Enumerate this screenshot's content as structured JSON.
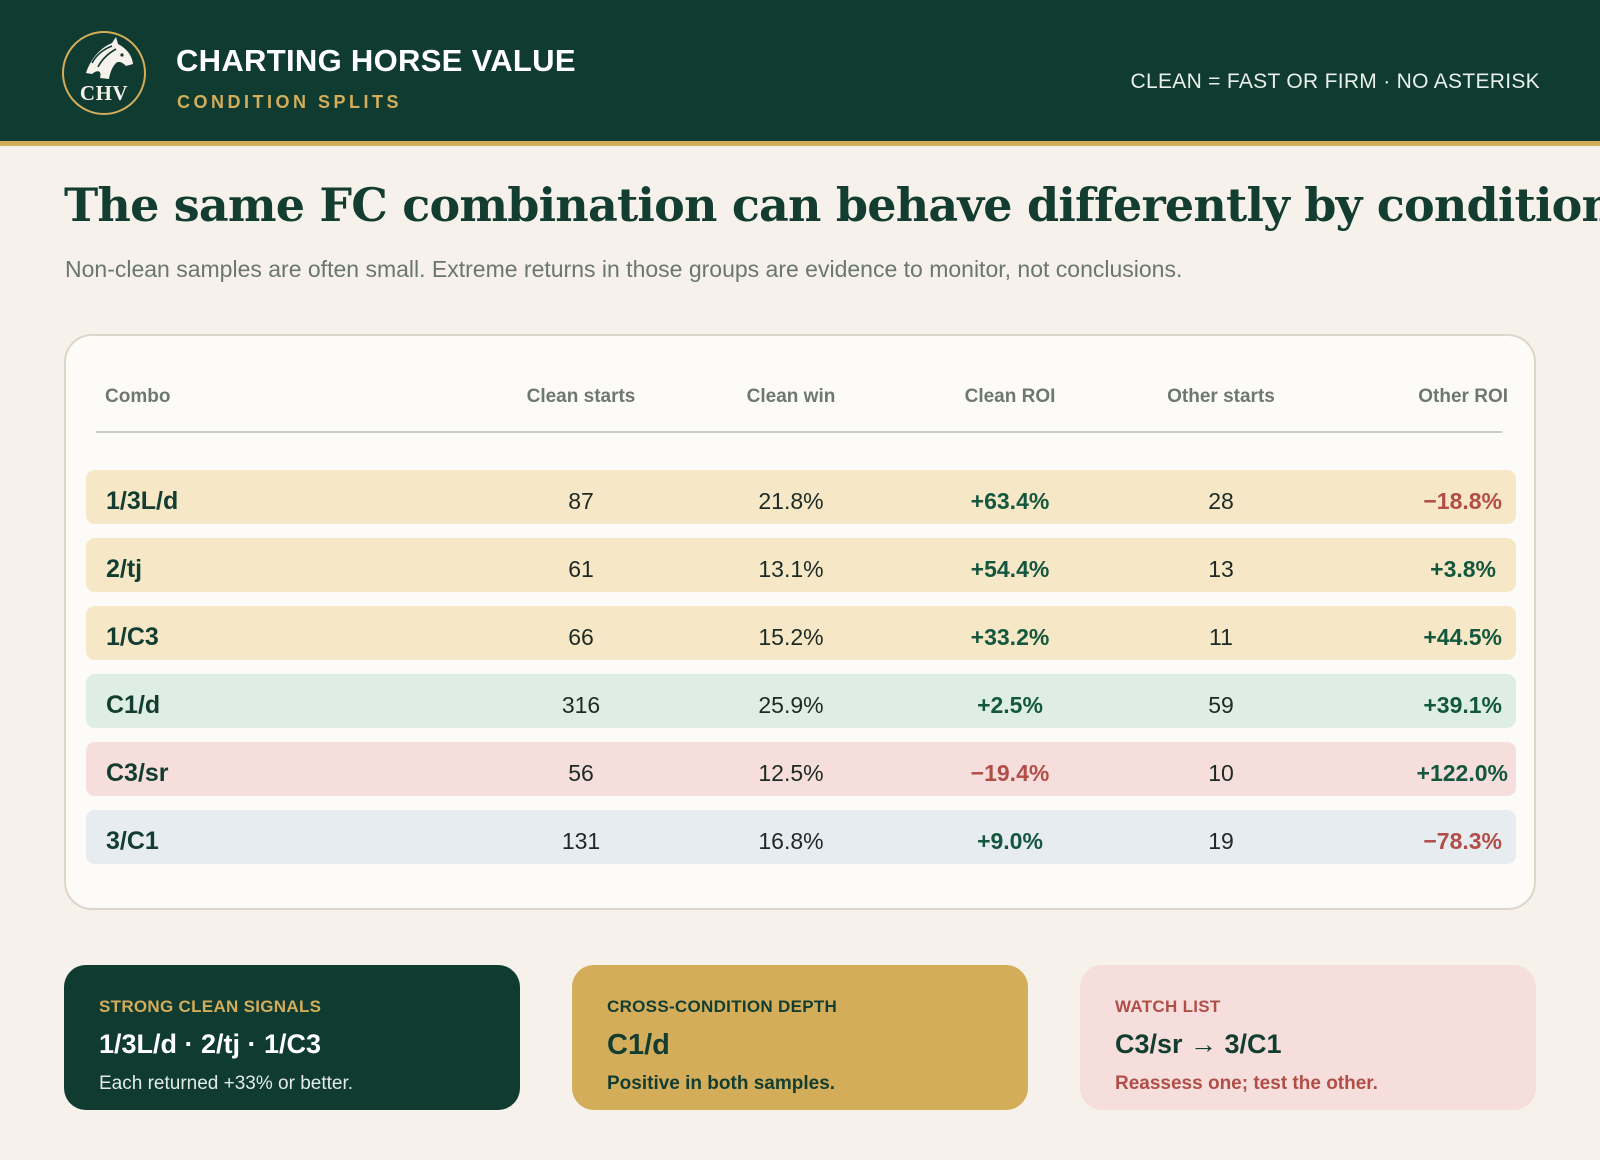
{
  "header": {
    "logo_text": "CHV",
    "title": "CHARTING HORSE VALUE",
    "subtitle": "CONDITION SPLITS",
    "note": "CLEAN = FAST OR FIRM · NO ASTERISK"
  },
  "headline": "The same FC combination can behave differently by condition",
  "subhead": "Non-clean samples are often small. Extreme returns in those groups are evidence to monitor, not conclusions.",
  "table": {
    "columns": [
      "Combo",
      "Clean starts",
      "Clean win",
      "Clean ROI",
      "Other starts",
      "Other ROI"
    ],
    "rows": [
      {
        "combo": "1/3L/d",
        "clean_starts": "87",
        "clean_win": "21.8%",
        "clean_roi": "+63.4%",
        "other_starts": "28",
        "other_roi": "−18.8%"
      },
      {
        "combo": "2/tj",
        "clean_starts": "61",
        "clean_win": "13.1%",
        "clean_roi": "+54.4%",
        "other_starts": "13",
        "other_roi": "+3.8%"
      },
      {
        "combo": "1/C3",
        "clean_starts": "66",
        "clean_win": "15.2%",
        "clean_roi": "+33.2%",
        "other_starts": "11",
        "other_roi": "+44.5%"
      },
      {
        "combo": "C1/d",
        "clean_starts": "316",
        "clean_win": "25.9%",
        "clean_roi": "+2.5%",
        "other_starts": "59",
        "other_roi": "+39.1%"
      },
      {
        "combo": "C3/sr",
        "clean_starts": "56",
        "clean_win": "12.5%",
        "clean_roi": "−19.4%",
        "other_starts": "10",
        "other_roi": "+122.0%"
      },
      {
        "combo": "3/C1",
        "clean_starts": "131",
        "clean_win": "16.8%",
        "clean_roi": "+9.0%",
        "other_starts": "19",
        "other_roi": "−78.3%"
      }
    ]
  },
  "cards": [
    {
      "label": "STRONG CLEAN SIGNALS",
      "value": "1/3L/d · 2/tj · 1/C3",
      "note": "Each returned +33% or better."
    },
    {
      "label": "CROSS-CONDITION DEPTH",
      "value": "C1/d",
      "note": "Positive in both samples."
    },
    {
      "label": "WATCH LIST",
      "value": "C3/sr → 3/C1",
      "note": "Reassess one; test the other."
    }
  ],
  "colors": {
    "header_bg": "#0f3b31",
    "gold": "#d4ad5a",
    "page_bg": "#f6f1ea",
    "row_gold": "#f6e8c6",
    "row_green": "#dfeee5",
    "row_red": "#f5dedb",
    "row_blue": "#e7ecf1",
    "positive": "#14573f",
    "negative": "#b24e48"
  }
}
